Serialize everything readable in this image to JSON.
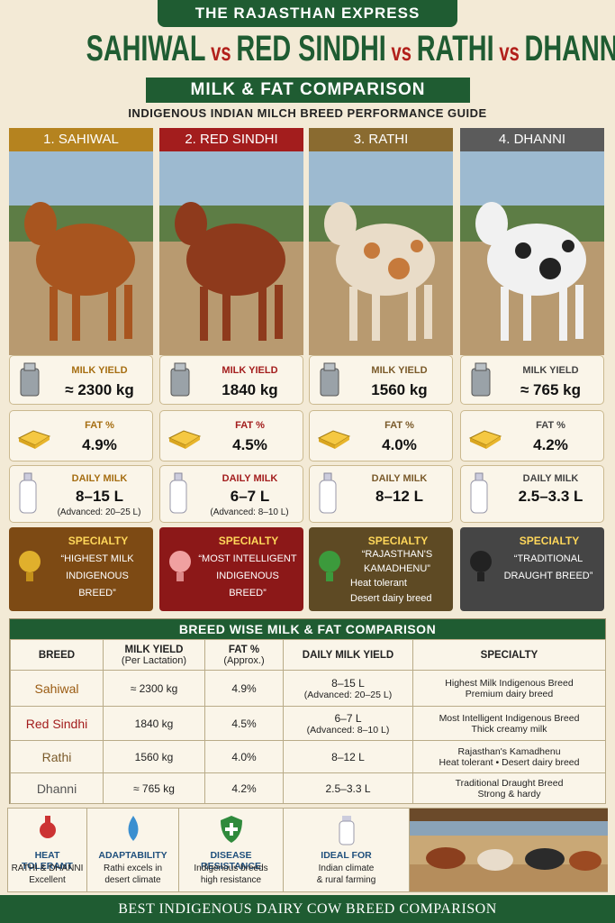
{
  "header": {
    "brand": "THE RAJASTHAN EXPRESS",
    "title_parts": [
      "SAHIWAL",
      "vs",
      "RED SINDHI",
      "vs",
      "RATHI",
      "vs",
      "DHANNI"
    ],
    "subtitle": "MILK & FAT COMPARISON",
    "tagline": "INDIGENOUS INDIAN MILCH BREED PERFORMANCE GUIDE"
  },
  "cards": [
    {
      "heading": "1. SAHIWAL",
      "milk_label": "MILK YIELD",
      "milk_value": "≈ 2300 kg",
      "fat_label": "FAT %",
      "fat_value": "4.9%",
      "daily_label": "DAILY MILK",
      "daily_value": "8–15 L",
      "daily_note": "(Advanced: 20–25 L)",
      "specialty_label": "SPECIALTY",
      "specialty_text": "“HIGHEST MILK INDIGENOUS BREED”"
    },
    {
      "heading": "2. RED SINDHI",
      "milk_label": "MILK YIELD",
      "milk_value": "1840 kg",
      "fat_label": "FAT %",
      "fat_value": "4.5%",
      "daily_label": "DAILY MILK",
      "daily_value": "6–7 L",
      "daily_note": "(Advanced: 8–10 L)",
      "specialty_label": "SPECIALTY",
      "specialty_text": "“MOST INTELLIGENT INDIGENOUS BREED”"
    },
    {
      "heading": "3. RATHI",
      "milk_label": "MILK YIELD",
      "milk_value": "1560 kg",
      "fat_label": "FAT %",
      "fat_value": "4.0%",
      "daily_label": "DAILY MILK",
      "daily_value": "8–12 L",
      "specialty_label": "SPECIALTY",
      "specialty_text": "“RAJASTHAN'S KAMADHENU”",
      "specialty_bullets": [
        "Heat tolerant",
        "Desert dairy breed"
      ]
    },
    {
      "heading": "4. DHANNI",
      "milk_label": "MILK YIELD",
      "milk_value": "≈ 765 kg",
      "fat_label": "FAT %",
      "fat_value": "4.2%",
      "daily_label": "DAILY MILK",
      "daily_value": "2.5–3.3 L",
      "specialty_label": "SPECIALTY",
      "specialty_text": "“TRADITIONAL DRAUGHT BREED”"
    }
  ],
  "table": {
    "title": "BREED WISE MILK & FAT COMPARISON",
    "headers": [
      [
        "BREED"
      ],
      [
        "MILK YIELD",
        "(Per Lactation)"
      ],
      [
        "FAT %",
        "(Approx.)"
      ],
      [
        "DAILY MILK YIELD"
      ],
      [
        "SPECIALTY"
      ]
    ],
    "rows": [
      [
        [
          "Sahiwal"
        ],
        [
          "≈ 2300 kg"
        ],
        [
          "4.9%"
        ],
        [
          "8–15 L",
          "(Advanced: 20–25 L)"
        ],
        [
          "Highest Milk Indigenous Breed",
          "Premium dairy breed"
        ]
      ],
      [
        [
          "Red Sindhi"
        ],
        [
          "1840 kg"
        ],
        [
          "4.5%"
        ],
        [
          "6–7 L",
          "(Advanced: 8–10 L)"
        ],
        [
          "Most Intelligent Indigenous Breed",
          "Thick creamy milk"
        ]
      ],
      [
        [
          "Rathi"
        ],
        [
          "1560 kg"
        ],
        [
          "4.0%"
        ],
        [
          "8–12 L"
        ],
        [
          "Rajasthan's Kamadhenu",
          "Heat tolerant  •  Desert dairy breed"
        ]
      ],
      [
        [
          "Dhanni"
        ],
        [
          "≈ 765 kg"
        ],
        [
          "4.2%"
        ],
        [
          "2.5–3.3 L"
        ],
        [
          "Traditional Draught Breed",
          "Strong & hardy"
        ]
      ]
    ]
  },
  "features": [
    {
      "title": "HEAT TOLERANT",
      "lines": [
        "RATHI & DHANNI",
        "Excellent"
      ]
    },
    {
      "title": "ADAPTABILITY",
      "lines": [
        "Rathi excels in",
        "desert climate"
      ]
    },
    {
      "title": "DISEASE RESISTANCE",
      "lines": [
        "Indigenous breeds",
        "high resistance"
      ]
    },
    {
      "title": "IDEAL FOR",
      "lines": [
        "Indian climate",
        "& rural farming"
      ]
    }
  ],
  "footer": "BEST INDIGENOUS DAIRY COW BREED COMPARISON"
}
